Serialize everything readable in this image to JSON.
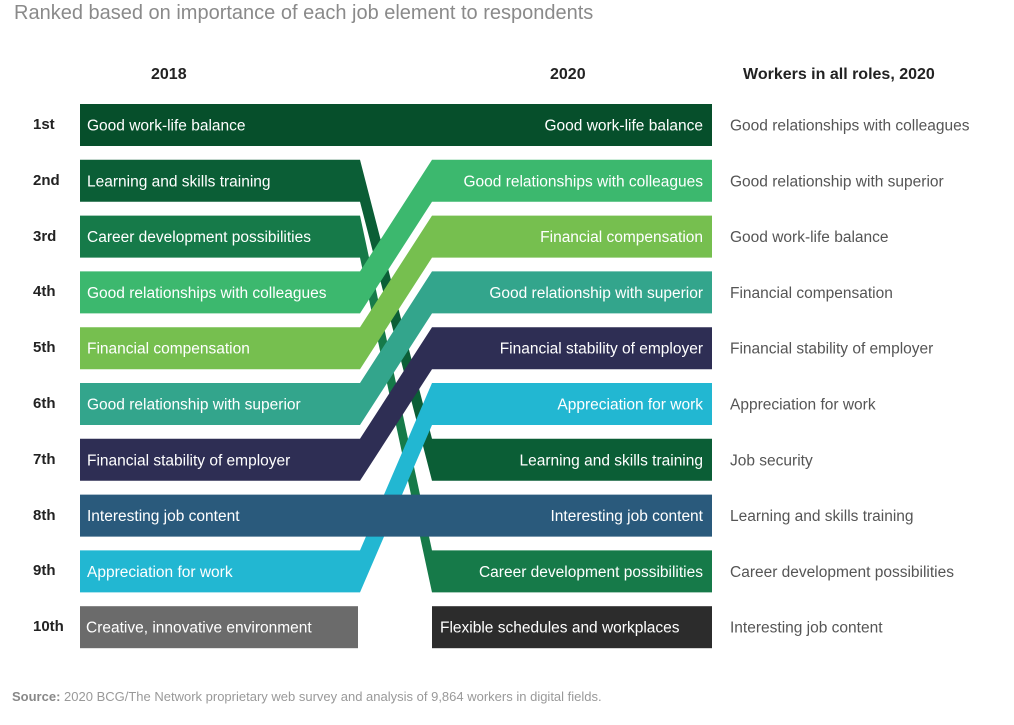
{
  "title": "Ranked based on importance of each job element to respondents",
  "headers": {
    "y2018": "2018",
    "y2020": "2020",
    "all_roles": "Workers in all roles, 2020"
  },
  "source": {
    "label": "Source:",
    "text": "2020 BCG/The Network proprietary web survey and analysis of 9,864 workers in digital fields."
  },
  "chart_data": {
    "type": "table",
    "ranks": [
      "1st",
      "2nd",
      "3rd",
      "4th",
      "5th",
      "6th",
      "7th",
      "8th",
      "9th",
      "10th"
    ],
    "elements": [
      {
        "name": "Good work-life balance",
        "rank_2018": 1,
        "rank_2020": 1,
        "color": "#064f2b"
      },
      {
        "name": "Learning and skills training",
        "rank_2018": 2,
        "rank_2020": 7,
        "color": "#0b5e36"
      },
      {
        "name": "Career development possibilities",
        "rank_2018": 3,
        "rank_2020": 9,
        "color": "#167a49"
      },
      {
        "name": "Good relationships with colleagues",
        "rank_2018": 4,
        "rank_2020": 2,
        "color": "#3cb86e"
      },
      {
        "name": "Financial compensation",
        "rank_2018": 5,
        "rank_2020": 3,
        "color": "#76bf4f"
      },
      {
        "name": "Good relationship with superior",
        "rank_2018": 6,
        "rank_2020": 4,
        "color": "#33a58c"
      },
      {
        "name": "Financial stability of employer",
        "rank_2018": 7,
        "rank_2020": 5,
        "color": "#2e2e54"
      },
      {
        "name": "Interesting job content",
        "rank_2018": 8,
        "rank_2020": 8,
        "color": "#2a5a7c"
      },
      {
        "name": "Appreciation for work",
        "rank_2018": 9,
        "rank_2020": 6,
        "color": "#22b7d2"
      }
    ],
    "only_2018": {
      "name": "Creative, innovative environment",
      "rank_2018": 10,
      "color": "#6b6b6b"
    },
    "only_2020": {
      "name": "Flexible schedules and workplaces",
      "rank_2020": 10,
      "color": "#2c2c2c"
    },
    "all_roles_2020": [
      "Good relationships with colleagues",
      "Good relationship with superior",
      "Good work-life balance",
      "Financial compensation",
      "Financial stability of employer",
      "Appreciation for work",
      "Job security",
      "Learning and skills training",
      "Career development possibilities",
      "Interesting job content"
    ]
  }
}
